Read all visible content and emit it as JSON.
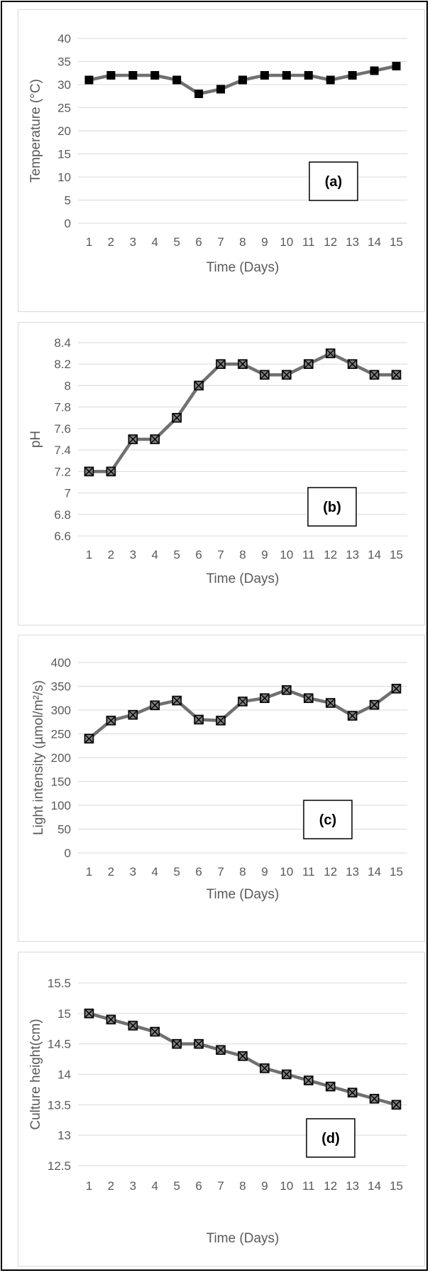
{
  "chart_data": [
    {
      "type": "line",
      "panel_label": "(a)",
      "xlabel": "Time (Days)",
      "ylabel": "Temperature (°C)",
      "x": [
        1,
        2,
        3,
        4,
        5,
        6,
        7,
        8,
        9,
        10,
        11,
        12,
        13,
        14,
        15
      ],
      "y": [
        31,
        32,
        32,
        32,
        31,
        28,
        29,
        31,
        32,
        32,
        32,
        31,
        32,
        33,
        34
      ],
      "ylim": [
        0,
        40
      ],
      "yticks": [
        "0",
        "5",
        "10",
        "15",
        "20",
        "25",
        "30",
        "35",
        "40"
      ],
      "grid": true,
      "marker": "filled-square",
      "line_color": "#707070"
    },
    {
      "type": "line",
      "panel_label": "(b)",
      "xlabel": "Time (Days)",
      "ylabel": "pH",
      "x": [
        1,
        2,
        3,
        4,
        5,
        6,
        7,
        8,
        9,
        10,
        11,
        12,
        13,
        14,
        15
      ],
      "y": [
        7.2,
        7.2,
        7.5,
        7.5,
        7.7,
        8.0,
        8.2,
        8.2,
        8.1,
        8.1,
        8.2,
        8.3,
        8.2,
        8.1,
        8.1
      ],
      "ylim": [
        6.6,
        8.4
      ],
      "yticks": [
        "6.6",
        "6.8",
        "7",
        "7.2",
        "7.4",
        "7.6",
        "7.8",
        "8",
        "8.2",
        "8.4"
      ],
      "grid": true,
      "marker": "crossed-square",
      "line_color": "#707070"
    },
    {
      "type": "line",
      "panel_label": "(c)",
      "xlabel": "Time (Days)",
      "ylabel": "Light intensity (µmol/m²/s)",
      "x": [
        1,
        2,
        3,
        4,
        5,
        6,
        7,
        8,
        9,
        10,
        11,
        12,
        13,
        14,
        15
      ],
      "y": [
        240,
        278,
        290,
        310,
        320,
        280,
        278,
        318,
        325,
        342,
        325,
        315,
        288,
        311,
        345
      ],
      "ylim": [
        0,
        400
      ],
      "yticks": [
        "0",
        "50",
        "100",
        "150",
        "200",
        "250",
        "300",
        "350",
        "400"
      ],
      "grid": true,
      "marker": "crossed-square",
      "line_color": "#707070"
    },
    {
      "type": "line",
      "panel_label": "(d)",
      "xlabel": "Time (Days)",
      "ylabel": "Culture height(cm)",
      "x": [
        1,
        2,
        3,
        4,
        5,
        6,
        7,
        8,
        9,
        10,
        11,
        12,
        13,
        14,
        15
      ],
      "y": [
        15.0,
        14.9,
        14.8,
        14.7,
        14.5,
        14.5,
        14.4,
        14.3,
        14.1,
        14.0,
        13.9,
        13.8,
        13.7,
        13.6,
        13.5
      ],
      "ylim": [
        12.5,
        15.5
      ],
      "yticks": [
        "12.5",
        "13",
        "13.5",
        "14",
        "14.5",
        "15",
        "15.5"
      ],
      "grid": true,
      "marker": "crossed-square",
      "line_color": "#707070"
    }
  ]
}
